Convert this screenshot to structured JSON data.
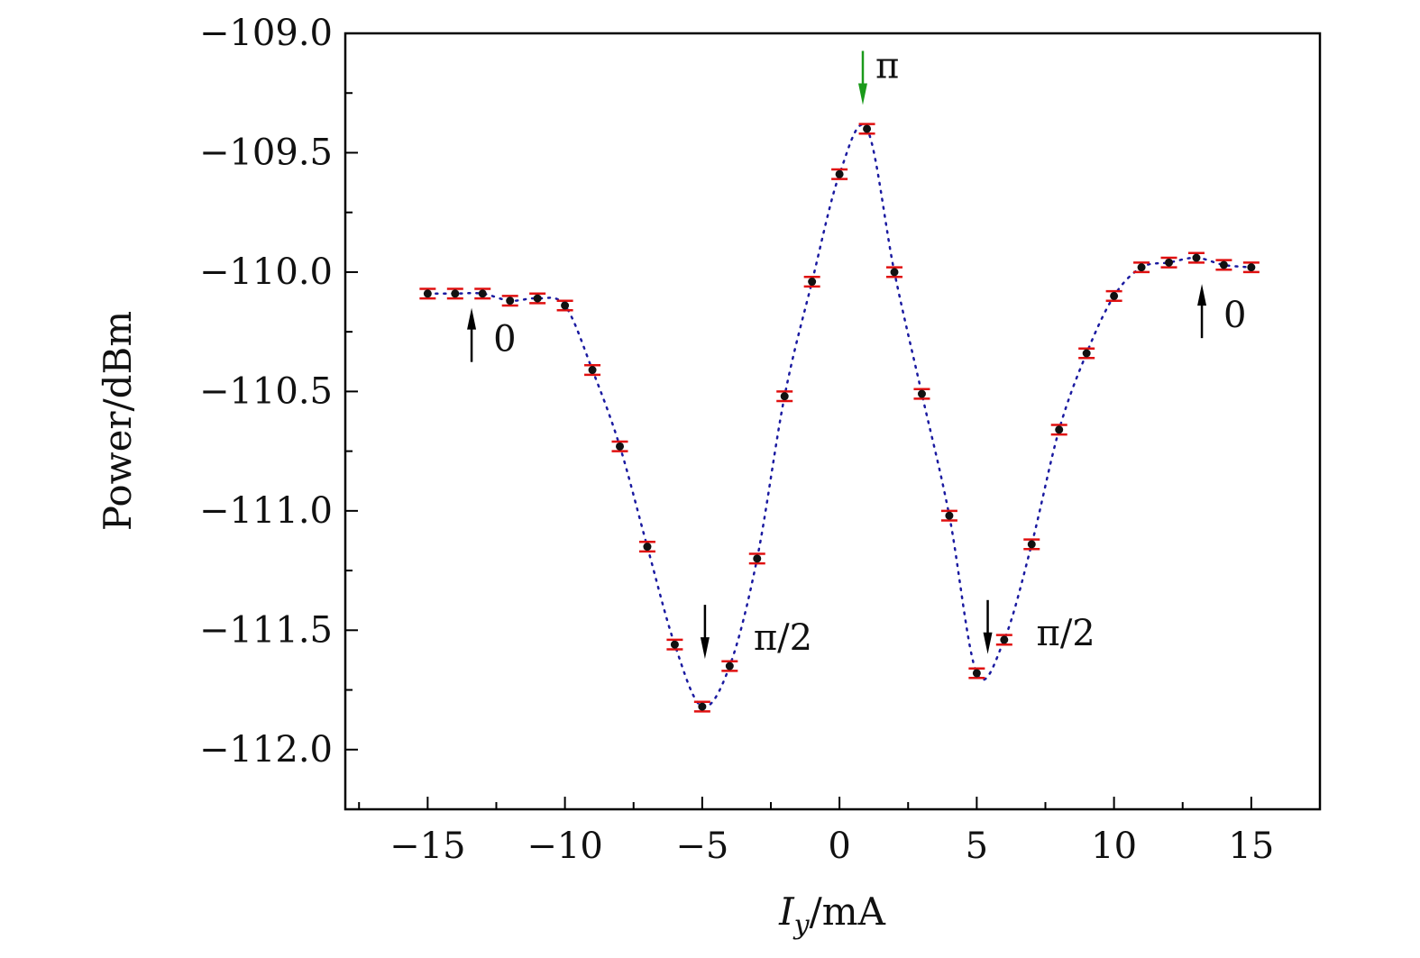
{
  "chart_data": {
    "type": "scatter",
    "title": "",
    "xlabel": {
      "var": "I",
      "sub": "y",
      "unit": "/mA"
    },
    "ylabel": "Power/dBm",
    "xlim": [
      -18,
      17.5
    ],
    "ylim": [
      -112.25,
      -109.0
    ],
    "x_ticks": [
      -15,
      -10,
      -5,
      0,
      5,
      10,
      15
    ],
    "x_tick_labels": [
      "−15",
      "−10",
      "−5",
      "0",
      "5",
      "10",
      "15"
    ],
    "y_ticks": [
      -109.0,
      -109.5,
      -110.0,
      -110.5,
      -111.0,
      -111.5,
      -112.0
    ],
    "y_tick_labels": [
      "−109.0",
      "−109.5",
      "−110.0",
      "−110.5",
      "−111.0",
      "−111.5",
      "−112.0"
    ],
    "grid": false,
    "series": [
      {
        "x": [
          -15,
          -14,
          -13,
          -12,
          -11,
          -10,
          -9,
          -8,
          -7,
          -6,
          -5,
          -4,
          -3,
          -2,
          -1,
          0,
          1,
          2,
          3,
          4,
          5,
          6,
          7,
          8,
          9,
          10,
          11,
          12,
          13,
          14,
          15
        ],
        "y": [
          -110.09,
          -110.09,
          -110.09,
          -110.12,
          -110.11,
          -110.14,
          -110.41,
          -110.73,
          -111.15,
          -111.56,
          -111.82,
          -111.65,
          -111.2,
          -110.52,
          -110.04,
          -109.59,
          -109.4,
          -110.0,
          -110.51,
          -111.02,
          -111.68,
          -111.54,
          -111.14,
          -110.66,
          -110.34,
          -110.1,
          -109.98,
          -109.96,
          -109.94,
          -109.97,
          -109.98
        ],
        "error": 0.02,
        "marker_color": "#111111",
        "errorbar_color": "#e01010",
        "line_color": "#1a1aa0",
        "line_style": "dotted"
      }
    ],
    "annotations": [
      {
        "text": "0",
        "x": -13.4,
        "y": -110.15,
        "arrow": "up",
        "color": "#000000"
      },
      {
        "text": "π/2",
        "x": -4.9,
        "y": -111.62,
        "arrow": "down",
        "color": "#000000"
      },
      {
        "text": "π",
        "x": 0.85,
        "y": -109.3,
        "arrow": "down",
        "color": "#1a9a1a"
      },
      {
        "text": "π/2",
        "x": 5.4,
        "y": -111.6,
        "arrow": "down",
        "color": "#000000"
      },
      {
        "text": "0",
        "x": 13.2,
        "y": -110.05,
        "arrow": "up",
        "color": "#000000"
      }
    ]
  }
}
